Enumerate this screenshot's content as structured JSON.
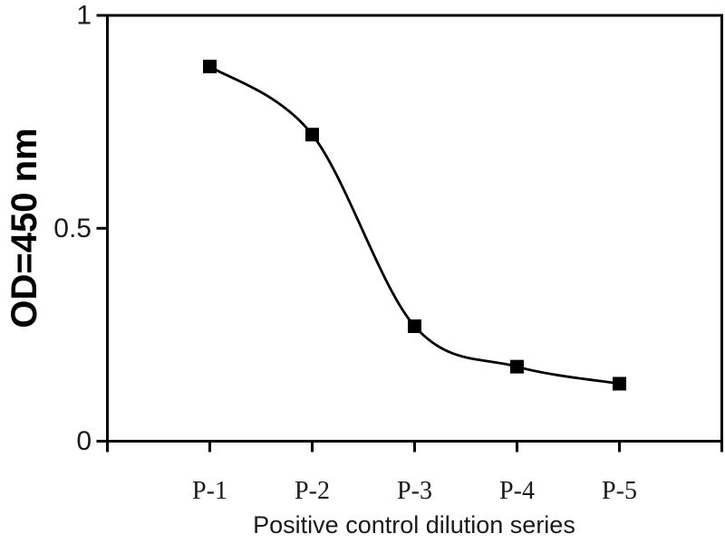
{
  "chart_data": {
    "type": "line",
    "title": "",
    "xlabel": "Positive control dilution series",
    "ylabel": "OD=450 nm",
    "categories": [
      "P-1",
      "P-2",
      "P-3",
      "P-4",
      "P-5"
    ],
    "series": [
      {
        "values": [
          0.88,
          0.72,
          0.27,
          0.175,
          0.135
        ]
      }
    ],
    "ylim": [
      0,
      1
    ],
    "yticks": [
      {
        "value": 1,
        "label": "1"
      },
      {
        "value": 0.5,
        "label": "0.5"
      },
      {
        "value": 0,
        "label": "0"
      }
    ],
    "marker_shape": "filled-square",
    "line_color": "#000000",
    "marker_color": "#000000",
    "grid": false,
    "legend": false,
    "plot_style": "boxed-frame, ticks outside, smooth spline through points"
  }
}
